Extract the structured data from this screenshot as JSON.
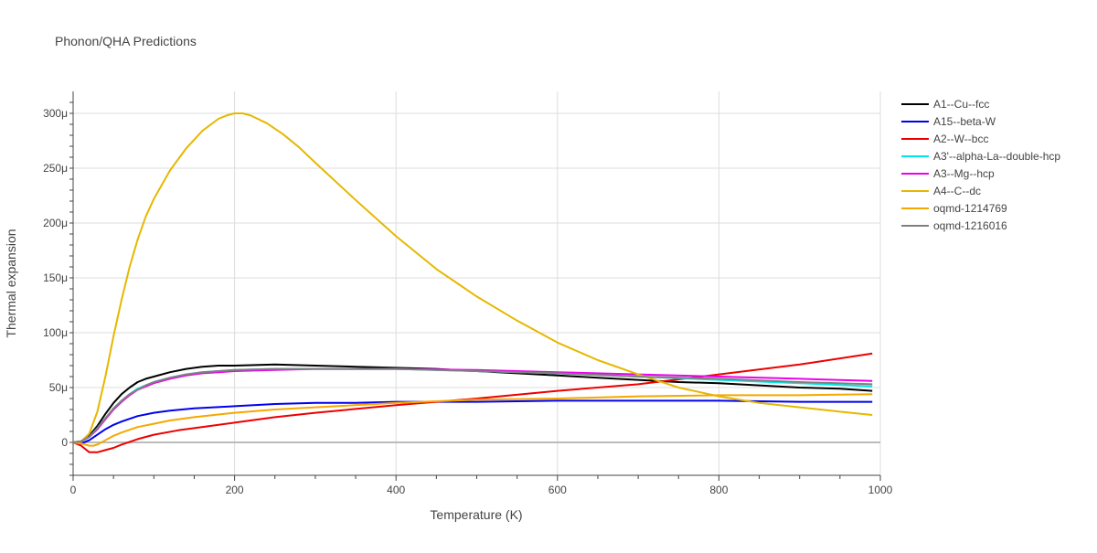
{
  "chart_data": {
    "type": "line",
    "title": "Phonon/QHA Predictions",
    "xlabel": "Temperature (K)",
    "ylabel": "Thermal expansion",
    "xlim": [
      0,
      1000
    ],
    "ylim": [
      -3e-05,
      0.00032
    ],
    "x_ticks": [
      0,
      200,
      400,
      600,
      800,
      1000
    ],
    "x_tick_labels": [
      "0",
      "200",
      "400",
      "600",
      "800",
      "1000"
    ],
    "y_ticks": [
      0,
      5e-05,
      0.0001,
      0.00015,
      0.0002,
      0.00025,
      0.0003
    ],
    "y_tick_labels": [
      "0",
      "50μ",
      "100μ",
      "150μ",
      "200μ",
      "250μ",
      "300μ"
    ],
    "grid": true,
    "legend_position": "right",
    "series": [
      {
        "name": "A1--Cu--fcc",
        "color": "#000000",
        "x": [
          0,
          10,
          20,
          30,
          40,
          50,
          60,
          70,
          80,
          90,
          100,
          120,
          140,
          160,
          180,
          200,
          250,
          300,
          350,
          400,
          450,
          500,
          550,
          600,
          650,
          700,
          750,
          800,
          850,
          900,
          950,
          990
        ],
        "y": [
          0,
          1e-06,
          6e-06,
          1.5e-05,
          2.6e-05,
          3.6e-05,
          4.4e-05,
          5e-05,
          5.5e-05,
          5.8e-05,
          6e-05,
          6.4e-05,
          6.7e-05,
          6.9e-05,
          7e-05,
          7e-05,
          7.1e-05,
          7e-05,
          6.9e-05,
          6.8e-05,
          6.7e-05,
          6.5e-05,
          6.3e-05,
          6.1e-05,
          5.9e-05,
          5.7e-05,
          5.5e-05,
          5.4e-05,
          5.2e-05,
          5e-05,
          4.9e-05,
          4.7e-05
        ]
      },
      {
        "name": "A15--beta-W",
        "color": "#0000ee",
        "x": [
          0,
          10,
          20,
          30,
          40,
          50,
          60,
          80,
          100,
          120,
          150,
          200,
          250,
          300,
          350,
          400,
          500,
          600,
          700,
          800,
          900,
          990
        ],
        "y": [
          0,
          -1e-06,
          2e-06,
          7e-06,
          1.2e-05,
          1.6e-05,
          1.9e-05,
          2.4e-05,
          2.7e-05,
          2.9e-05,
          3.1e-05,
          3.3e-05,
          3.5e-05,
          3.6e-05,
          3.6e-05,
          3.7e-05,
          3.7e-05,
          3.8e-05,
          3.8e-05,
          3.8e-05,
          3.7e-05,
          3.7e-05
        ]
      },
      {
        "name": "A2--W--bcc",
        "color": "#ee0000",
        "x": [
          0,
          10,
          20,
          30,
          35,
          40,
          50,
          60,
          80,
          100,
          130,
          150,
          200,
          250,
          300,
          400,
          500,
          600,
          700,
          800,
          900,
          990
        ],
        "y": [
          0,
          -3e-06,
          -9e-06,
          -9e-06,
          -8e-06,
          -7e-06,
          -5e-06,
          -2e-06,
          3e-06,
          7e-06,
          1.1e-05,
          1.3e-05,
          1.8e-05,
          2.3e-05,
          2.7e-05,
          3.4e-05,
          4e-05,
          4.7e-05,
          5.3e-05,
          6.2e-05,
          7.1e-05,
          8.1e-05
        ]
      },
      {
        "name": "A3'--alpha-La--double-hcp",
        "color": "#00e6e6",
        "x": [
          0,
          10,
          20,
          30,
          40,
          50,
          60,
          70,
          80,
          90,
          100,
          120,
          140,
          160,
          180,
          200,
          250,
          300,
          350,
          400,
          500,
          600,
          700,
          800,
          900,
          990
        ],
        "y": [
          0,
          1e-06,
          5e-06,
          1.3e-05,
          2.2e-05,
          3.1e-05,
          3.8e-05,
          4.4e-05,
          4.9e-05,
          5.2e-05,
          5.5e-05,
          5.9e-05,
          6.2e-05,
          6.4e-05,
          6.5e-05,
          6.6e-05,
          6.7e-05,
          6.7e-05,
          6.7e-05,
          6.7e-05,
          6.5e-05,
          6.3e-05,
          6e-05,
          5.7e-05,
          5.4e-05,
          5.1e-05
        ]
      },
      {
        "name": "A3--Mg--hcp",
        "color": "#ee00ee",
        "x": [
          0,
          10,
          20,
          30,
          40,
          50,
          60,
          70,
          80,
          90,
          100,
          120,
          140,
          160,
          180,
          200,
          250,
          300,
          350,
          400,
          500,
          600,
          700,
          800,
          900,
          990
        ],
        "y": [
          0,
          1e-06,
          5e-06,
          1.2e-05,
          2.1e-05,
          3e-05,
          3.7e-05,
          4.3e-05,
          4.8e-05,
          5.1e-05,
          5.4e-05,
          5.8e-05,
          6.1e-05,
          6.3e-05,
          6.4e-05,
          6.5e-05,
          6.6e-05,
          6.7e-05,
          6.7e-05,
          6.7e-05,
          6.6e-05,
          6.4e-05,
          6.2e-05,
          6e-05,
          5.8e-05,
          5.6e-05
        ]
      },
      {
        "name": "A4--C--dc",
        "color": "#e6b800",
        "x": [
          0,
          10,
          20,
          30,
          40,
          50,
          60,
          70,
          80,
          90,
          100,
          120,
          140,
          160,
          180,
          190,
          200,
          210,
          220,
          240,
          260,
          280,
          300,
          350,
          400,
          450,
          500,
          550,
          600,
          650,
          700,
          750,
          800,
          850,
          900,
          950,
          990
        ],
        "y": [
          0,
          1e-06,
          8e-06,
          2.8e-05,
          6e-05,
          9.7e-05,
          0.00013,
          0.00016,
          0.000185,
          0.000206,
          0.000222,
          0.000248,
          0.000268,
          0.000284,
          0.000295,
          0.000298,
          0.0003,
          0.0003,
          0.000298,
          0.000291,
          0.000281,
          0.000269,
          0.000255,
          0.000221,
          0.000188,
          0.000158,
          0.000133,
          0.000111,
          9.1e-05,
          7.5e-05,
          6.2e-05,
          5e-05,
          4.2e-05,
          3.6e-05,
          3.2e-05,
          2.8e-05,
          2.5e-05
        ]
      },
      {
        "name": "oqmd-1214769",
        "color": "#f5a800",
        "x": [
          0,
          10,
          20,
          25,
          30,
          40,
          50,
          60,
          80,
          100,
          120,
          150,
          200,
          250,
          300,
          400,
          500,
          600,
          700,
          800,
          900,
          990
        ],
        "y": [
          0,
          -1e-06,
          -3e-06,
          -3e-06,
          -2e-06,
          2e-06,
          6e-06,
          9e-06,
          1.4e-05,
          1.7e-05,
          2e-05,
          2.3e-05,
          2.7e-05,
          3e-05,
          3.2e-05,
          3.6e-05,
          3.9e-05,
          4e-05,
          4.2e-05,
          4.3e-05,
          4.3e-05,
          4.4e-05
        ]
      },
      {
        "name": "oqmd-1216016",
        "color": "#808080",
        "x": [
          0,
          10,
          20,
          30,
          40,
          50,
          60,
          70,
          80,
          90,
          100,
          120,
          140,
          160,
          180,
          200,
          250,
          300,
          350,
          400,
          500,
          600,
          700,
          800,
          900,
          990
        ],
        "y": [
          0,
          1e-06,
          5e-06,
          1.3e-05,
          2.2e-05,
          3.1e-05,
          3.8e-05,
          4.4e-05,
          4.8e-05,
          5.2e-05,
          5.5e-05,
          5.9e-05,
          6.2e-05,
          6.4e-05,
          6.5e-05,
          6.6e-05,
          6.7e-05,
          6.7e-05,
          6.7e-05,
          6.7e-05,
          6.5e-05,
          6.3e-05,
          6e-05,
          5.8e-05,
          5.5e-05,
          5.3e-05
        ]
      }
    ]
  }
}
